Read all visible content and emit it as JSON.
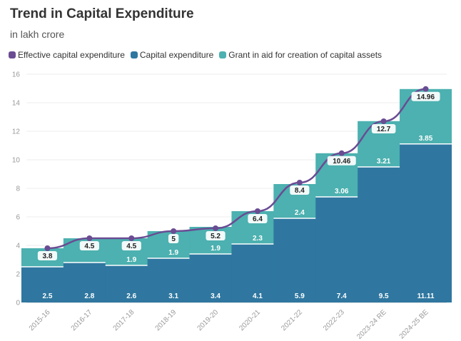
{
  "header": {
    "title": "Trend in Capital Expenditure",
    "subtitle": "in lakh crore"
  },
  "colors": {
    "effective": "#6a4c93",
    "capital": "#2f77a0",
    "grant": "#4cb1b0"
  },
  "chart_data": {
    "type": "bar",
    "stacked": true,
    "categories": [
      "2015-16",
      "2016-17",
      "2017-18",
      "2018-19",
      "2019-20",
      "2020-21",
      "2021-22",
      "2022-23",
      "2023-24 RE",
      "2024-25 BE"
    ],
    "series": [
      {
        "name": "Capital expenditure",
        "kind": "bar",
        "values": [
          2.5,
          2.8,
          2.6,
          3.1,
          3.4,
          4.1,
          5.9,
          7.4,
          9.5,
          11.11
        ]
      },
      {
        "name": "Grant in aid for creation of capital assets",
        "kind": "bar",
        "values": [
          1.3,
          1.7,
          1.9,
          1.9,
          1.9,
          2.3,
          2.4,
          3.06,
          3.21,
          3.85
        ]
      },
      {
        "name": "Effective capital expenditure",
        "kind": "line",
        "values": [
          3.8,
          4.5,
          4.5,
          5,
          5.2,
          6.4,
          8.4,
          10.46,
          12.7,
          14.96
        ]
      }
    ],
    "grant_labels": [
      "",
      "",
      "1.9",
      "1.9",
      "1.9",
      "2.3",
      "2.4",
      "3.06",
      "3.21",
      "3.85"
    ],
    "capital_labels": [
      "2.5",
      "2.8",
      "2.6",
      "3.1",
      "3.4",
      "4.1",
      "5.9",
      "7.4",
      "9.5",
      "11.11"
    ],
    "total_labels": [
      "3.8",
      "4.5",
      "4.5",
      "5",
      "5.2",
      "6.4",
      "8.4",
      "10.46",
      "12.7",
      "14.96"
    ],
    "ylim": [
      0,
      16
    ],
    "yticks": [
      0,
      2,
      4,
      6,
      8,
      10,
      12,
      14,
      16
    ],
    "grid": true,
    "legend_position": "top-left"
  }
}
